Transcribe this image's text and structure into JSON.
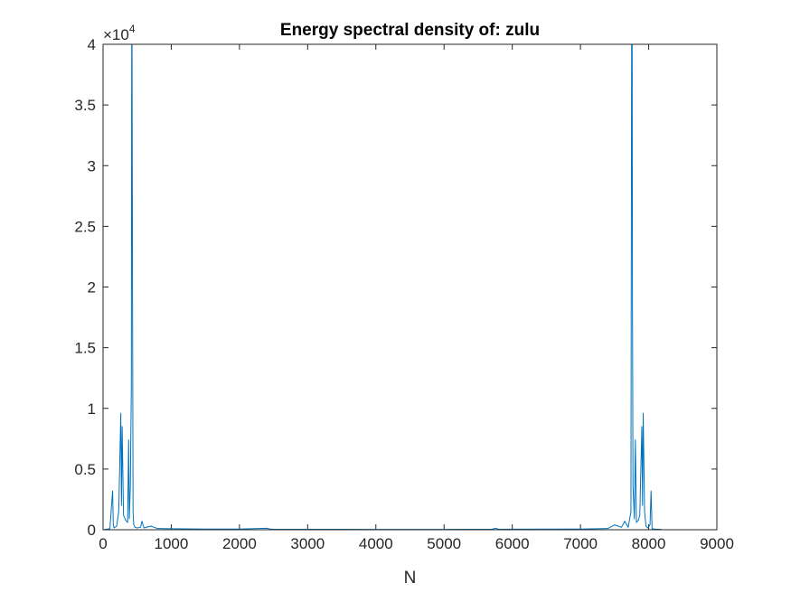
{
  "chart_data": {
    "type": "line",
    "title": "Energy spectral density of: zulu",
    "xlabel": "N",
    "ylabel": "",
    "xlim": [
      0,
      9000
    ],
    "ylim": [
      0,
      40000
    ],
    "y_exponent_label": {
      "base": "×10",
      "power": "4"
    },
    "x_ticks": [
      0,
      1000,
      2000,
      3000,
      4000,
      5000,
      6000,
      7000,
      8000,
      9000
    ],
    "x_tick_labels": [
      "0",
      "1000",
      "2000",
      "3000",
      "4000",
      "5000",
      "6000",
      "7000",
      "8000",
      "9000"
    ],
    "y_ticks": [
      0,
      5000,
      10000,
      15000,
      20000,
      25000,
      30000,
      35000,
      40000
    ],
    "y_tick_labels": [
      "0",
      "0.5",
      "1",
      "1.5",
      "2",
      "2.5",
      "3",
      "3.5",
      "4"
    ],
    "grid": false,
    "line_color": "#0072BD",
    "series": [
      {
        "x": [
          0,
          100,
          140,
          150,
          160,
          200,
          230,
          260,
          270,
          280,
          300,
          330,
          360,
          375,
          385,
          400,
          415,
          420,
          425,
          432,
          440,
          450,
          470,
          500,
          550,
          570,
          600,
          700,
          800,
          1000,
          1500,
          2000,
          2400,
          2450,
          2500,
          3000,
          4000,
          5000,
          5700,
          5760,
          5800,
          6000,
          7000,
          7400,
          7500,
          7600,
          7650,
          7700,
          7740,
          7750,
          7758,
          7762,
          7770,
          7790,
          7805,
          7820,
          7850,
          7870,
          7900,
          7910,
          7920,
          7940,
          7960,
          7990,
          8020,
          8035,
          8050,
          8100,
          8180,
          8192
        ],
        "y": [
          0,
          80,
          3200,
          400,
          150,
          300,
          1500,
          9600,
          2000,
          8500,
          1200,
          800,
          600,
          7400,
          900,
          3600,
          12000,
          40000,
          40000,
          20000,
          1500,
          400,
          200,
          150,
          200,
          700,
          150,
          300,
          100,
          80,
          60,
          60,
          120,
          60,
          50,
          40,
          30,
          30,
          40,
          120,
          40,
          50,
          60,
          100,
          400,
          200,
          700,
          200,
          1500,
          40000,
          40000,
          20000,
          3600,
          900,
          7400,
          600,
          800,
          1200,
          8500,
          2000,
          9600,
          1500,
          300,
          150,
          400,
          3200,
          80,
          50,
          30,
          0
        ]
      }
    ]
  }
}
